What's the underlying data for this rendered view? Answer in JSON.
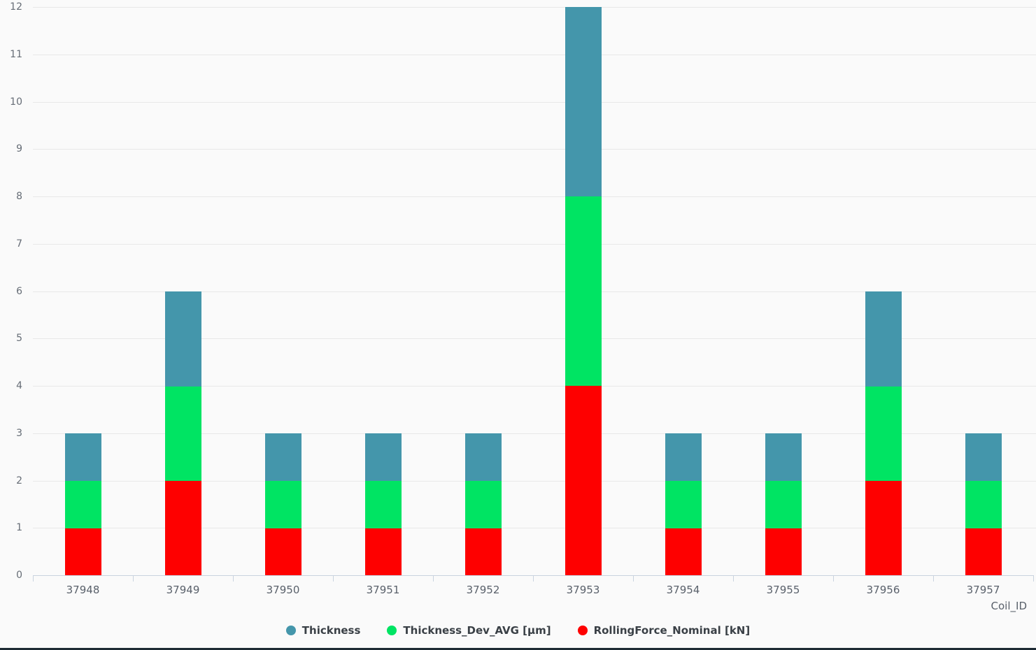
{
  "chart_data": {
    "type": "bar",
    "stacked": true,
    "title": "",
    "xlabel": "Coil_ID",
    "ylabel": "",
    "ylim": [
      0,
      12
    ],
    "ytick_step": 1,
    "grid": "horizontal",
    "legend_position": "bottom",
    "categories": [
      "37948",
      "37949",
      "37950",
      "37951",
      "37952",
      "37953",
      "37954",
      "37955",
      "37956",
      "37957"
    ],
    "series": [
      {
        "name": "Thickness",
        "color": "#4496ab",
        "values": [
          1,
          2,
          1,
          1,
          1,
          4,
          1,
          1,
          2,
          1
        ]
      },
      {
        "name": "Thickness_Dev_AVG [µm]",
        "color": "#00e463",
        "values": [
          1,
          2,
          1,
          1,
          1,
          4,
          1,
          1,
          2,
          1
        ]
      },
      {
        "name": "RollingForce_Nominal [kN]",
        "color": "#fe0000",
        "values": [
          1,
          2,
          1,
          1,
          1,
          4,
          1,
          1,
          2,
          1
        ]
      }
    ],
    "stack_order_bottom_to_top": [
      "RollingForce_Nominal [kN]",
      "Thickness_Dev_AVG [µm]",
      "Thickness"
    ],
    "totals": [
      3,
      6,
      3,
      3,
      3,
      12,
      3,
      3,
      6,
      3
    ]
  },
  "colors": {
    "background": "#fafafa",
    "gridline": "#e8e8e8",
    "axis_line": "#c9d3df",
    "y_label": "#666d76",
    "x_label": "#5a616b",
    "legend_text": "#3a4046",
    "bottom_strip": "#1d2a33"
  }
}
